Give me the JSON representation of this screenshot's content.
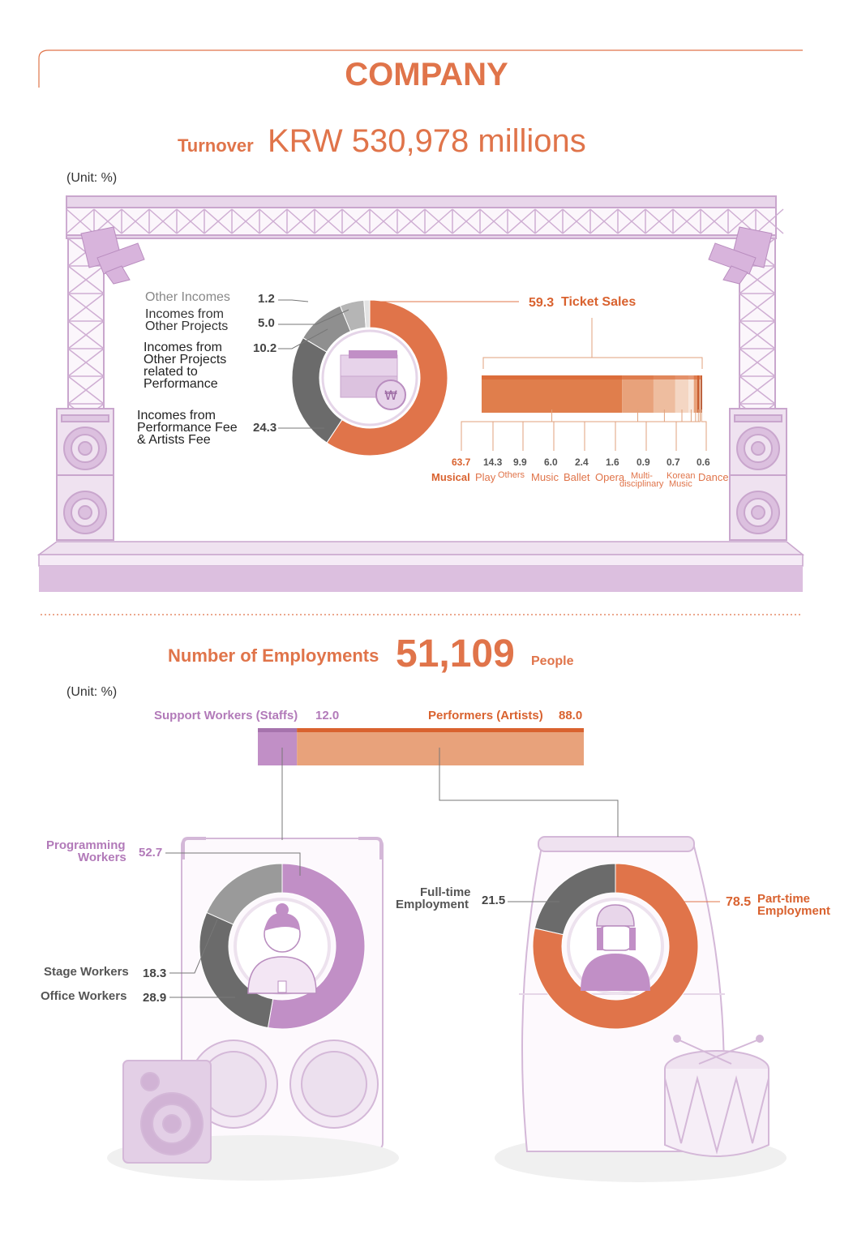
{
  "title": "COMPANY",
  "turnover": {
    "label": "Turnover",
    "value": "KRW 530,978 millions",
    "unit_note": "(Unit: %)"
  },
  "employment": {
    "label": "Number of Employments",
    "value": "51,109",
    "unit": "People",
    "unit_note": "(Unit: %)"
  },
  "colors": {
    "accent_orange": "#e0744a",
    "dark_gray": "#6b6b6b",
    "mid_gray": "#8f8f8f",
    "light_gray": "#b5b5b5",
    "purple": "#c18fc6",
    "stage_purple": "#d9bbdc"
  },
  "chart_data": [
    {
      "type": "pie",
      "name": "turnover-by-source",
      "slices": [
        {
          "label": "Ticket Sales",
          "value": 59.3,
          "color": "#e0744a"
        },
        {
          "label": "Incomes from Performance Fee & Artists Fee",
          "value": 24.3,
          "color": "#6b6b6b"
        },
        {
          "label": "Incomes from Other Projects related to Performance",
          "value": 10.2,
          "color": "#8f8f8f"
        },
        {
          "label": "Incomes from Other Projects",
          "value": 5.0,
          "color": "#b5b5b5"
        },
        {
          "label": "Other Incomes",
          "value": 1.2,
          "color": "#e3e3e3"
        }
      ],
      "value_labels": [
        "59.3",
        "24.3",
        "10.2",
        "5.0",
        "1.2"
      ]
    },
    {
      "type": "bar",
      "name": "ticket-sales-by-genre",
      "orientation": "stacked-horizontal",
      "categories": [
        "Musical",
        "Play",
        "Others",
        "Music",
        "Ballet",
        "Opera",
        "Multi-disciplinary",
        "Korean Music",
        "Dance"
      ],
      "values": [
        63.7,
        14.3,
        9.9,
        6.0,
        2.4,
        1.6,
        0.9,
        0.7,
        0.6
      ],
      "value_labels": [
        "63.7",
        "14.3",
        "9.9",
        "6.0",
        "2.4",
        "1.6",
        "0.9",
        "0.7",
        "0.6"
      ]
    },
    {
      "type": "bar",
      "name": "employment-by-role",
      "orientation": "stacked-horizontal",
      "categories": [
        "Support Workers (Staffs)",
        "Performers (Artists)"
      ],
      "values": [
        12.0,
        88.0
      ],
      "value_labels": [
        "12.0",
        "88.0"
      ]
    },
    {
      "type": "pie",
      "name": "support-workers-breakdown",
      "slices": [
        {
          "label": "Programming Workers",
          "value": 52.7,
          "color": "#c18fc6"
        },
        {
          "label": "Office Workers",
          "value": 28.9,
          "color": "#6b6b6b"
        },
        {
          "label": "Stage Workers",
          "value": 18.3,
          "color": "#9a9a9a"
        }
      ],
      "value_labels": [
        "52.7",
        "28.9",
        "18.3"
      ]
    },
    {
      "type": "pie",
      "name": "performers-breakdown",
      "slices": [
        {
          "label": "Part-time Employment",
          "value": 78.5,
          "color": "#e0744a"
        },
        {
          "label": "Full-time Employment",
          "value": 21.5,
          "color": "#6b6b6b"
        }
      ],
      "value_labels": [
        "78.5",
        "21.5"
      ]
    }
  ],
  "labels": {
    "other_incomes": "Other Incomes",
    "other_projects_1": "Incomes  from",
    "other_projects_2": "Other Projects",
    "related_1": "Incomes from",
    "related_2": "Other Projects",
    "related_3": "related to",
    "related_4": "Performance",
    "perf_fee_1": "Incomes from",
    "perf_fee_2": "Performance Fee",
    "perf_fee_3": "& Artists Fee",
    "ticket_sales": "Ticket Sales",
    "genre_names": [
      "Musical",
      "Play",
      "Others",
      "Music",
      "Ballet",
      "Opera",
      "Multi-",
      "disciplinary",
      "Korean",
      "Music",
      "Dance"
    ],
    "support_workers": "Support Workers (Staffs)",
    "performers": "Performers (Artists)",
    "programming_1": "Programming",
    "programming_2": "Workers",
    "stage_workers": "Stage Workers",
    "office_workers": "Office Workers",
    "fulltime_1": "Full-time",
    "fulltime_2": "Employment",
    "parttime_1": "Part-time",
    "parttime_2": "Employment"
  },
  "icons": [
    "money-bundle-icon",
    "won-coin-icon",
    "woman-staff-icon",
    "performer-icon",
    "speaker-icon",
    "drum-icon",
    "stage-light-icon"
  ]
}
